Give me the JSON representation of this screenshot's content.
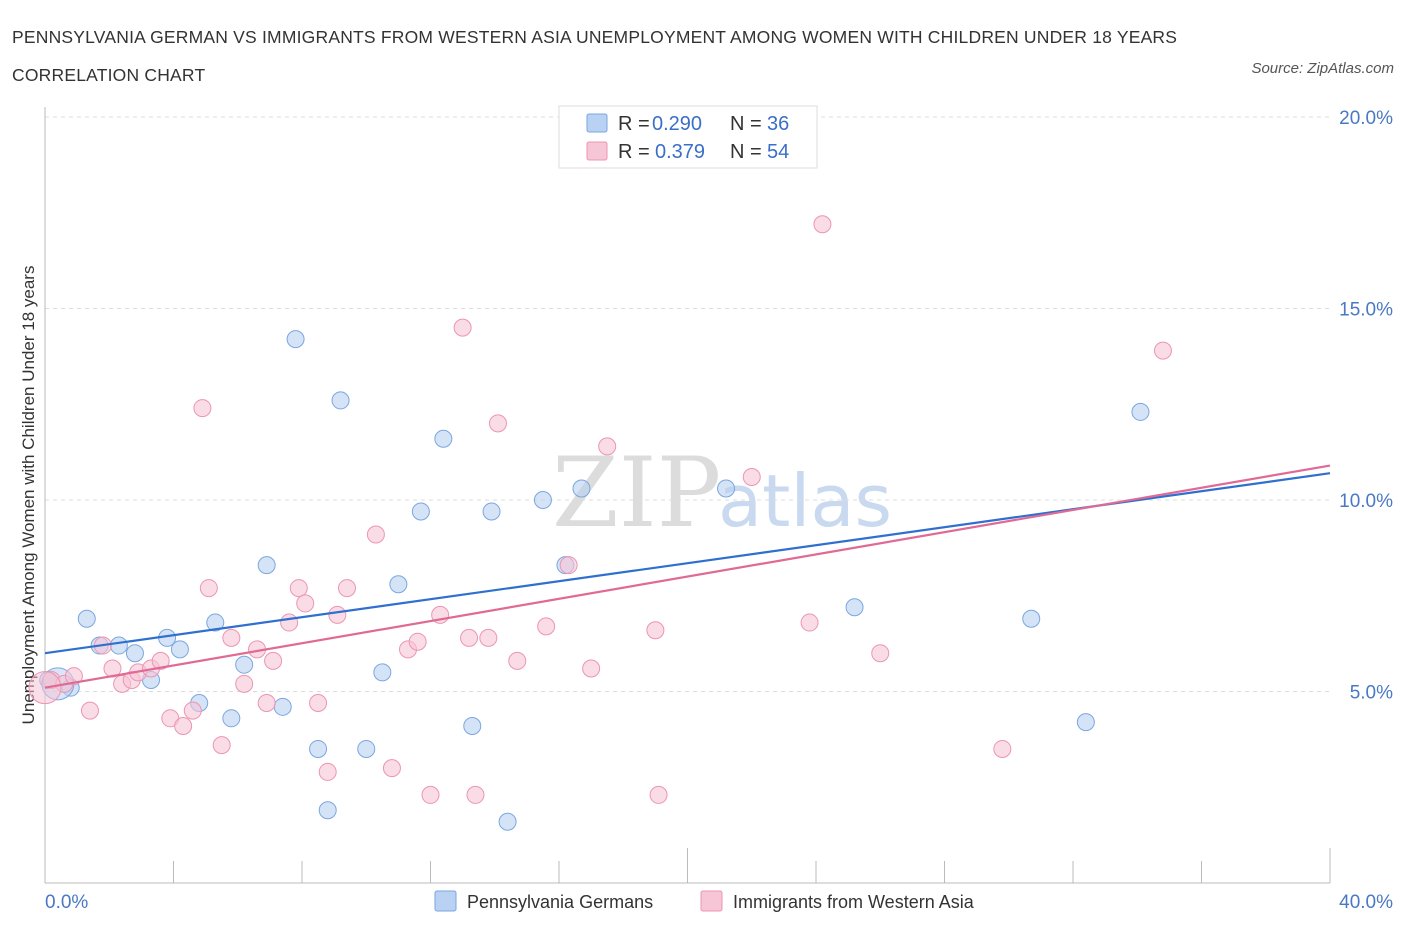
{
  "title": "PENNSYLVANIA GERMAN VS IMMIGRANTS FROM WESTERN ASIA UNEMPLOYMENT AMONG WOMEN WITH CHILDREN UNDER 18 YEARS CORRELATION CHART",
  "source": "Source: ZipAtlas.com",
  "watermark": {
    "zip": "ZIP",
    "atlas": "atlas"
  },
  "legend": {
    "r_label": "R =",
    "n_label": "N =",
    "rows": [
      {
        "r": "0.290",
        "n": "36"
      },
      {
        "r": "0.379",
        "n": "54"
      }
    ]
  },
  "chart_data": {
    "type": "scatter",
    "xlabel": "",
    "ylabel": "Unemployment Among Women with Children Under 18 years",
    "xlim": [
      0,
      40
    ],
    "ylim": [
      0,
      20
    ],
    "x_tick_labels": [
      "0.0%",
      "40.0%"
    ],
    "y_ticks": [
      5,
      10,
      15,
      20
    ],
    "y_tick_labels": [
      "5.0%",
      "10.0%",
      "15.0%",
      "20.0%"
    ],
    "grid": true,
    "colors": {
      "blue": "#7aa7e0",
      "blue_fill": "#b9d1f2",
      "blue_line": "#2f6fcf",
      "pink": "#ec95b3",
      "pink_fill": "#f6c5d6",
      "pink_line": "#e06a94"
    },
    "series": [
      {
        "name": "Pennsylvania Germans",
        "color": "blue",
        "trend": {
          "x0": 0,
          "y0": 6.0,
          "x1": 40,
          "y1": 10.7
        },
        "points": [
          [
            0.1,
            5.3
          ],
          [
            0.8,
            5.1
          ],
          [
            1.3,
            6.9
          ],
          [
            1.7,
            6.2
          ],
          [
            2.3,
            6.2
          ],
          [
            2.8,
            6.0
          ],
          [
            3.3,
            5.3
          ],
          [
            3.8,
            6.4
          ],
          [
            4.2,
            6.1
          ],
          [
            4.8,
            4.7
          ],
          [
            5.3,
            6.8
          ],
          [
            5.8,
            4.3
          ],
          [
            6.2,
            5.7
          ],
          [
            6.9,
            8.3
          ],
          [
            7.4,
            4.6
          ],
          [
            7.8,
            14.2
          ],
          [
            8.5,
            3.5
          ],
          [
            8.8,
            1.9
          ],
          [
            9.2,
            12.6
          ],
          [
            10.0,
            3.5
          ],
          [
            10.5,
            5.5
          ],
          [
            11.0,
            7.8
          ],
          [
            11.7,
            9.7
          ],
          [
            12.4,
            11.6
          ],
          [
            13.3,
            4.1
          ],
          [
            13.9,
            9.7
          ],
          [
            14.4,
            1.6
          ],
          [
            15.5,
            10.0
          ],
          [
            16.2,
            8.3
          ],
          [
            16.7,
            10.3
          ],
          [
            21.2,
            10.3
          ],
          [
            25.2,
            7.2
          ],
          [
            30.7,
            6.9
          ],
          [
            32.4,
            4.2
          ],
          [
            34.1,
            12.3
          ],
          [
            0.4,
            5.2
          ]
        ]
      },
      {
        "name": "Immigrants from Western Asia",
        "color": "pink",
        "trend": {
          "x0": 0,
          "y0": 5.1,
          "x1": 40,
          "y1": 10.9
        },
        "points": [
          [
            0.2,
            5.3
          ],
          [
            0.6,
            5.2
          ],
          [
            0.9,
            5.4
          ],
          [
            1.4,
            4.5
          ],
          [
            1.8,
            6.2
          ],
          [
            2.1,
            5.6
          ],
          [
            2.4,
            5.2
          ],
          [
            2.7,
            5.3
          ],
          [
            2.9,
            5.5
          ],
          [
            3.3,
            5.6
          ],
          [
            3.6,
            5.8
          ],
          [
            3.9,
            4.3
          ],
          [
            4.3,
            4.1
          ],
          [
            4.6,
            4.5
          ],
          [
            4.9,
            12.4
          ],
          [
            5.1,
            7.7
          ],
          [
            5.5,
            3.6
          ],
          [
            5.8,
            6.4
          ],
          [
            6.2,
            5.2
          ],
          [
            6.6,
            6.1
          ],
          [
            6.9,
            4.7
          ],
          [
            7.1,
            5.8
          ],
          [
            7.6,
            6.8
          ],
          [
            7.9,
            7.7
          ],
          [
            8.1,
            7.3
          ],
          [
            8.5,
            4.7
          ],
          [
            8.8,
            2.9
          ],
          [
            9.1,
            7.0
          ],
          [
            9.4,
            7.7
          ],
          [
            10.3,
            9.1
          ],
          [
            10.8,
            3.0
          ],
          [
            11.3,
            6.1
          ],
          [
            11.6,
            6.3
          ],
          [
            12.0,
            2.3
          ],
          [
            12.3,
            7.0
          ],
          [
            13.0,
            14.5
          ],
          [
            13.2,
            6.4
          ],
          [
            13.4,
            2.3
          ],
          [
            13.8,
            6.4
          ],
          [
            14.1,
            12.0
          ],
          [
            14.7,
            5.8
          ],
          [
            15.6,
            6.7
          ],
          [
            16.3,
            8.3
          ],
          [
            17.0,
            5.6
          ],
          [
            17.5,
            11.4
          ],
          [
            19.0,
            6.6
          ],
          [
            19.1,
            2.3
          ],
          [
            22.0,
            10.6
          ],
          [
            23.8,
            6.8
          ],
          [
            24.2,
            17.2
          ],
          [
            26.0,
            6.0
          ],
          [
            29.8,
            3.5
          ],
          [
            34.8,
            13.9
          ],
          [
            0.0,
            5.1
          ]
        ]
      }
    ]
  }
}
